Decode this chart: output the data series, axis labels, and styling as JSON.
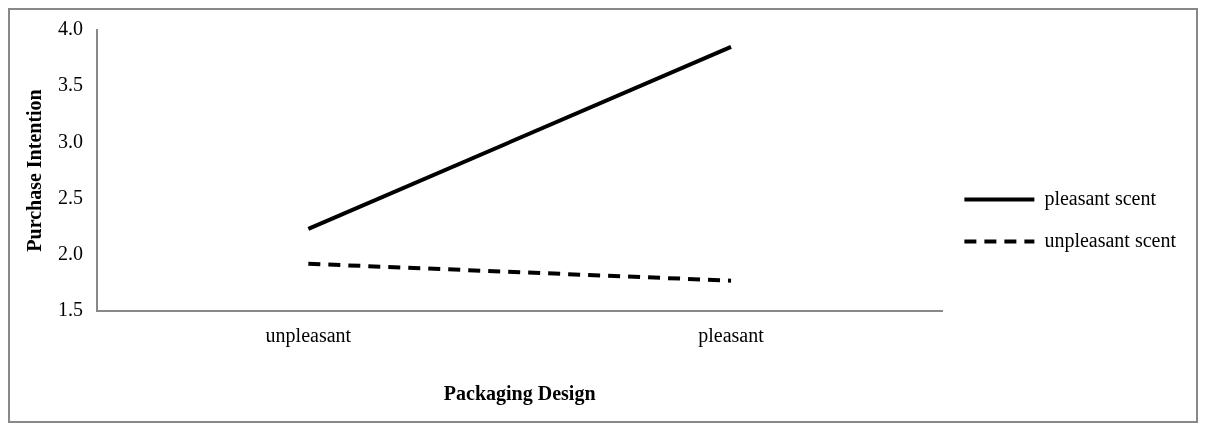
{
  "chart_data": {
    "type": "line",
    "xlabel": "Packaging Design",
    "ylabel": "Purchase Intention",
    "categories": [
      "unpleasant",
      "pleasant"
    ],
    "series": [
      {
        "name": "pleasant scent",
        "color": "#000000",
        "values": [
          2.23,
          3.85
        ],
        "line_style": "solid"
      },
      {
        "name": "unpleasant scent",
        "color": "#000000",
        "values": [
          1.92,
          1.77
        ],
        "line_style": "dashed"
      }
    ],
    "ylim": [
      1.5,
      4.0
    ],
    "yticks": [
      {
        "value": 1.5,
        "label": "1.5"
      },
      {
        "value": 2,
        "label": "2.0"
      },
      {
        "value": 2.5,
        "label": "2.5"
      },
      {
        "value": 3,
        "label": "3.0"
      },
      {
        "value": 3.5,
        "label": "3.5"
      },
      {
        "value": 4,
        "label": "4.0"
      }
    ],
    "grid": false,
    "legend": "right",
    "marker": "none"
  }
}
